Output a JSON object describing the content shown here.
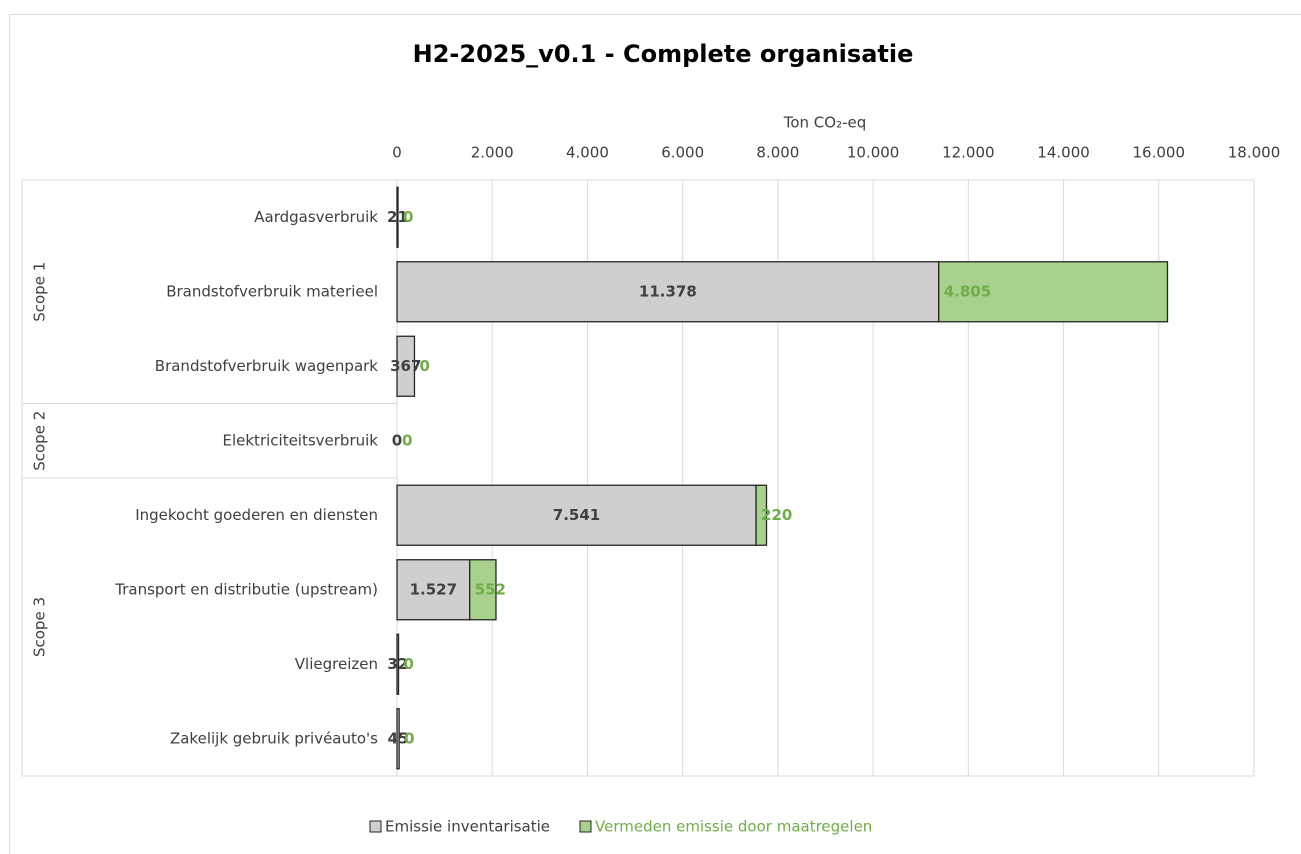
{
  "chart_data": {
    "type": "stacked-barh",
    "title": "H2-2025_v0.1 - Complete organisatie",
    "x_label": "Ton CO₂-eq",
    "categories": [
      "Aardgasverbruik",
      "Brandstofverbruik materieel",
      "Brandstofverbruik wagenpark",
      "Elektriciteitsverbruik",
      "Ingekocht goederen en diensten",
      "Transport en distributie (upstream)",
      "Vliegreizen",
      "Zakelijk gebruik privéauto's"
    ],
    "groups": [
      {
        "name": "Scope 1",
        "count": 3
      },
      {
        "name": "Scope 2",
        "count": 1
      },
      {
        "name": "Scope 3",
        "count": 4
      }
    ],
    "series": [
      {
        "name": "Emissie inventarisatie",
        "color": "#d0cece",
        "label_color": "#404040",
        "values": [
          21,
          11378,
          367,
          0,
          7541,
          1527,
          32,
          45
        ],
        "value_labels": [
          "21",
          "11.378",
          "367",
          "0",
          "7.541",
          "1.527",
          "32",
          "45"
        ]
      },
      {
        "name": "Vermeden emissie door maatregelen",
        "color": "#a9d18e",
        "label_color": "#70ad47",
        "values": [
          0,
          4805,
          0,
          0,
          220,
          552,
          0,
          0
        ],
        "value_labels": [
          "0",
          "4.805",
          "0",
          "0",
          "220",
          "552",
          "0",
          "0"
        ]
      }
    ],
    "xlim": [
      0,
      18000
    ],
    "xticks": [
      0,
      {
        "value": 2000,
        "label": "2.000"
      },
      {
        "value": 4000,
        "label": "4.000"
      },
      {
        "value": 6000,
        "label": "6.000"
      },
      {
        "value": 8000,
        "label": "8.000"
      },
      {
        "value": 10000,
        "label": "10.000"
      },
      {
        "value": 12000,
        "label": "12.000"
      },
      {
        "value": 14000,
        "label": "14.000"
      },
      {
        "value": 16000,
        "label": "16.000"
      },
      {
        "value": 18000,
        "label": "18.000"
      }
    ],
    "grid": true,
    "legend": "bottom"
  }
}
